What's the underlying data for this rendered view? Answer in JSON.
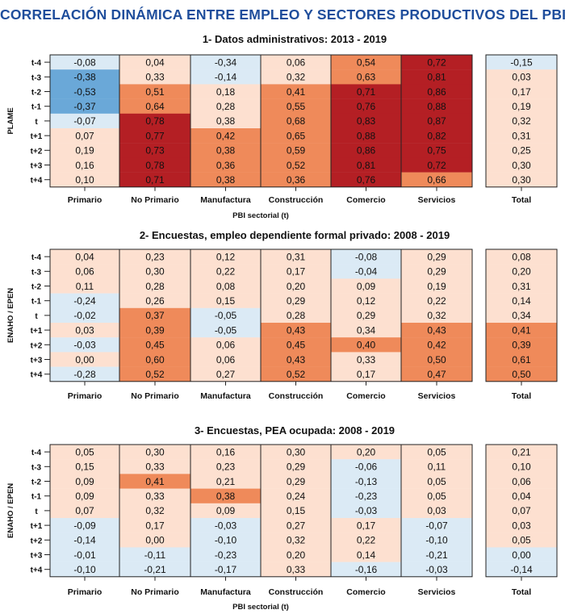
{
  "title": "CORRELACIÓN DINÁMICA ENTRE EMPLEO Y SECTORES PRODUCTIVOS DEL PBI",
  "colors": {
    "neg_strong": "#6aa8d8",
    "neg_light": "#dbeaf5",
    "pos_light": "#fde0d0",
    "pos_mid": "#ef8a5a",
    "pos_strong": "#b41f24"
  },
  "chart_data": [
    {
      "type": "heatmap",
      "title": "1- Datos administrativos: 2013 - 2019",
      "ylabel": "PLAME",
      "xlabel": "PBI sectorial (t)",
      "rows": [
        "t-4",
        "t-3",
        "t-2",
        "t-1",
        "t",
        "t+1",
        "t+2",
        "t+3",
        "t+4"
      ],
      "columns": [
        "Primario",
        "No Primario",
        "Manufactura",
        "Construcción",
        "Comercio",
        "Servicios"
      ],
      "total_label": "Total",
      "values": [
        [
          "-0,08",
          "0,04",
          "-0,34",
          "0,06",
          "0,54",
          "0,72"
        ],
        [
          "-0,38",
          "0,33",
          "-0,14",
          "0,32",
          "0,63",
          "0,81"
        ],
        [
          "-0,53",
          "0,51",
          "0,18",
          "0,41",
          "0,71",
          "0,86"
        ],
        [
          "-0,37",
          "0,64",
          "0,28",
          "0,55",
          "0,76",
          "0,88"
        ],
        [
          "-0,07",
          "0,78",
          "0,38",
          "0,68",
          "0,83",
          "0,87"
        ],
        [
          "0,07",
          "0,77",
          "0,42",
          "0,65",
          "0,88",
          "0,82"
        ],
        [
          "0,19",
          "0,73",
          "0,38",
          "0,59",
          "0,86",
          "0,75"
        ],
        [
          "0,16",
          "0,78",
          "0,36",
          "0,52",
          "0,81",
          "0,72"
        ],
        [
          "0,10",
          "0,71",
          "0,38",
          "0,36",
          "0,76",
          "0,66"
        ]
      ],
      "levels": [
        [
          1,
          2,
          1,
          2,
          3,
          4
        ],
        [
          0,
          2,
          1,
          2,
          3,
          4
        ],
        [
          0,
          3,
          2,
          3,
          4,
          4
        ],
        [
          0,
          3,
          2,
          3,
          4,
          4
        ],
        [
          1,
          4,
          2,
          3,
          4,
          4
        ],
        [
          2,
          4,
          3,
          3,
          4,
          4
        ],
        [
          2,
          4,
          3,
          3,
          4,
          4
        ],
        [
          2,
          4,
          3,
          3,
          4,
          4
        ],
        [
          2,
          4,
          3,
          3,
          4,
          3
        ]
      ],
      "total": [
        "-0,15",
        "0,03",
        "0,17",
        "0,19",
        "0,32",
        "0,31",
        "0,25",
        "0,30",
        "0,30"
      ],
      "total_levels": [
        1,
        2,
        2,
        2,
        2,
        2,
        2,
        2,
        2
      ]
    },
    {
      "type": "heatmap",
      "title": "2- Encuestas, empleo dependiente formal privado: 2008 - 2019",
      "ylabel": "ENAHO / EPEN",
      "xlabel": "PBI sectorial (t)",
      "rows": [
        "t-4",
        "t-3",
        "t-2",
        "t-1",
        "t",
        "t+1",
        "t+2",
        "t+3",
        "t+4"
      ],
      "columns": [
        "Primario",
        "No Primario",
        "Manufactura",
        "Construcción",
        "Comercio",
        "Servicios"
      ],
      "total_label": "Total",
      "values": [
        [
          "0,04",
          "0,23",
          "0,12",
          "0,31",
          "-0,08",
          "0,29"
        ],
        [
          "0,06",
          "0,30",
          "0,22",
          "0,17",
          "-0,04",
          "0,29"
        ],
        [
          "0,11",
          "0,28",
          "0,08",
          "0,20",
          "0,09",
          "0,19"
        ],
        [
          "-0,24",
          "0,26",
          "0,15",
          "0,29",
          "0,12",
          "0,22"
        ],
        [
          "-0,02",
          "0,37",
          "-0,05",
          "0,28",
          "0,29",
          "0,32"
        ],
        [
          "0,03",
          "0,39",
          "-0,05",
          "0,43",
          "0,34",
          "0,43"
        ],
        [
          "-0,03",
          "0,45",
          "0,06",
          "0,45",
          "0,40",
          "0,42"
        ],
        [
          "0,00",
          "0,60",
          "0,06",
          "0,43",
          "0,33",
          "0,50"
        ],
        [
          "-0,28",
          "0,52",
          "0,27",
          "0,52",
          "0,17",
          "0,47"
        ]
      ],
      "levels": [
        [
          2,
          2,
          2,
          2,
          1,
          2
        ],
        [
          2,
          2,
          2,
          2,
          1,
          2
        ],
        [
          2,
          2,
          2,
          2,
          2,
          2
        ],
        [
          1,
          2,
          2,
          2,
          2,
          2
        ],
        [
          1,
          3,
          1,
          2,
          2,
          2
        ],
        [
          2,
          3,
          1,
          3,
          2,
          3
        ],
        [
          1,
          3,
          2,
          3,
          3,
          3
        ],
        [
          2,
          3,
          2,
          3,
          2,
          3
        ],
        [
          1,
          3,
          2,
          3,
          2,
          3
        ]
      ],
      "total": [
        "0,08",
        "0,20",
        "0,31",
        "0,14",
        "0,34",
        "0,41",
        "0,39",
        "0,61",
        "0,50"
      ],
      "total_levels": [
        2,
        2,
        2,
        2,
        2,
        3,
        3,
        3,
        3
      ]
    },
    {
      "type": "heatmap",
      "title": "3- Encuestas, PEA ocupada: 2008 - 2019",
      "ylabel": "ENAHO / EPEN",
      "xlabel": "PBI sectorial (t)",
      "rows": [
        "t-4",
        "t-3",
        "t-2",
        "t-1",
        "t",
        "t+1",
        "t+2",
        "t+3",
        "t+4"
      ],
      "columns": [
        "Primario",
        "No Primario",
        "Manufactura",
        "Construcción",
        "Comercio",
        "Servicios"
      ],
      "total_label": "Total",
      "values": [
        [
          "0,05",
          "0,30",
          "0,16",
          "0,30",
          "0,20",
          "0,05"
        ],
        [
          "0,15",
          "0,33",
          "0,23",
          "0,29",
          "-0,06",
          "0,11"
        ],
        [
          "0,09",
          "0,41",
          "0,21",
          "0,29",
          "-0,13",
          "0,05"
        ],
        [
          "0,09",
          "0,33",
          "0,38",
          "0,24",
          "-0,23",
          "0,05"
        ],
        [
          "0,07",
          "0,32",
          "0,09",
          "0,15",
          "-0,03",
          "0,03"
        ],
        [
          "-0,09",
          "0,17",
          "-0,03",
          "0,27",
          "0,17",
          "-0,07"
        ],
        [
          "-0,14",
          "0,00",
          "-0,10",
          "0,32",
          "0,22",
          "-0,10"
        ],
        [
          "-0,01",
          "-0,11",
          "-0,23",
          "0,20",
          "0,14",
          "-0,21"
        ],
        [
          "-0,10",
          "-0,21",
          "-0,17",
          "0,33",
          "-0,16",
          "-0,03"
        ]
      ],
      "levels": [
        [
          2,
          2,
          2,
          2,
          2,
          2
        ],
        [
          2,
          2,
          2,
          2,
          1,
          2
        ],
        [
          2,
          3,
          2,
          2,
          1,
          2
        ],
        [
          2,
          2,
          3,
          2,
          1,
          2
        ],
        [
          2,
          2,
          2,
          2,
          1,
          2
        ],
        [
          1,
          2,
          1,
          2,
          2,
          1
        ],
        [
          1,
          2,
          1,
          2,
          2,
          1
        ],
        [
          1,
          1,
          1,
          2,
          2,
          1
        ],
        [
          1,
          1,
          1,
          2,
          1,
          1
        ]
      ],
      "total": [
        "0,21",
        "0,10",
        "0,06",
        "0,04",
        "0,07",
        "0,03",
        "0,05",
        "0,00",
        "-0,14"
      ],
      "total_levels": [
        2,
        2,
        2,
        2,
        2,
        2,
        2,
        1,
        1
      ]
    }
  ]
}
